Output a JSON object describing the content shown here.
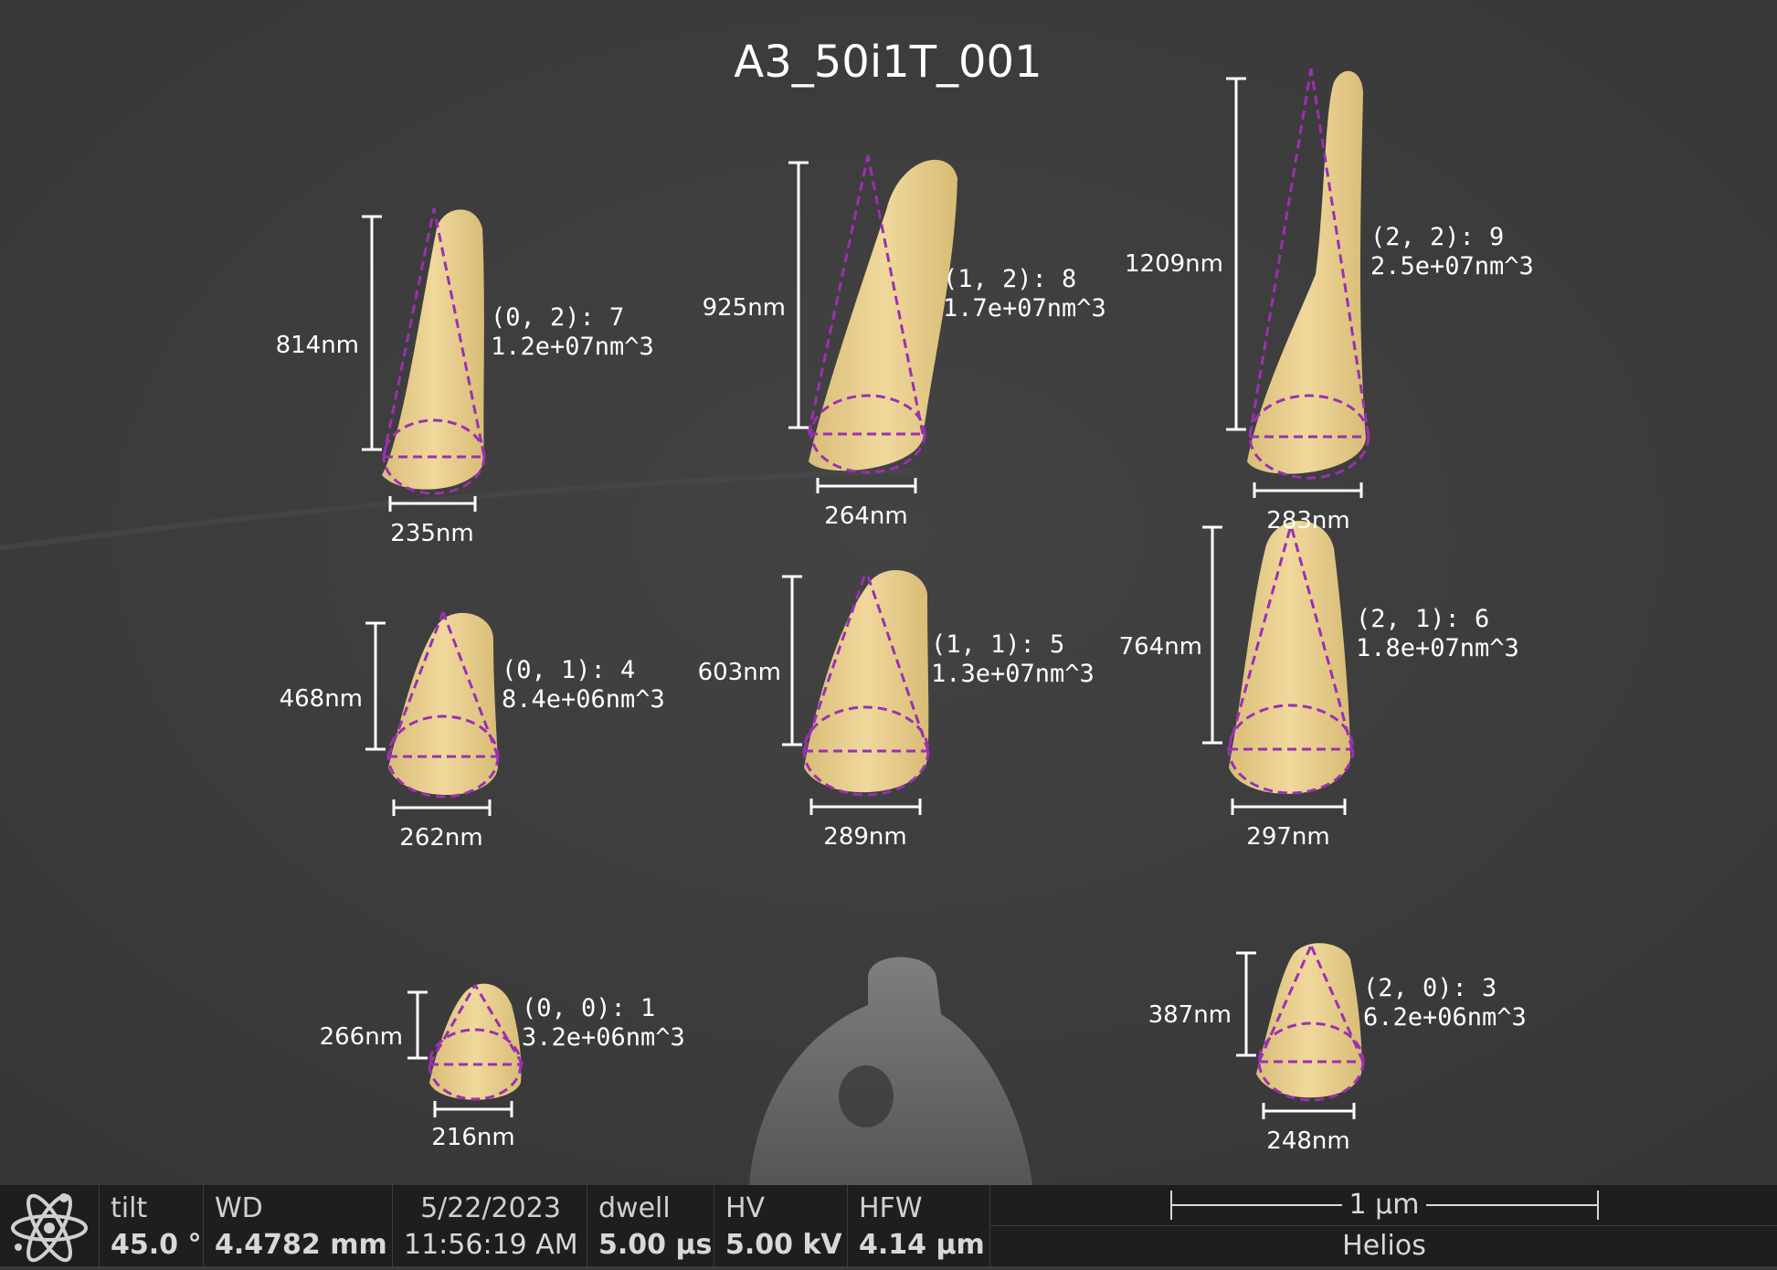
{
  "image": {
    "title": "A3_50i1T_001",
    "colors": {
      "background": "#3a3a3a",
      "pillar_fill": "#e8cf8f",
      "cone_outline": "#9b30b0",
      "annotation": "#ffffff"
    },
    "pillars": [
      {
        "label": "(0, 0): 1",
        "volume": "3.2e+06nm^3",
        "height": "266nm",
        "width": "216nm"
      },
      {
        "label": "(0, 1): 4",
        "volume": "8.4e+06nm^3",
        "height": "468nm",
        "width": "262nm"
      },
      {
        "label": "(0, 2): 7",
        "volume": "1.2e+07nm^3",
        "height": "814nm",
        "width": "235nm"
      },
      {
        "label": "(1, 1): 5",
        "volume": "1.3e+07nm^3",
        "height": "603nm",
        "width": "289nm"
      },
      {
        "label": "(1, 2): 8",
        "volume": "1.7e+07nm^3",
        "height": "925nm",
        "width": "264nm"
      },
      {
        "label": "(2, 0): 3",
        "volume": "6.2e+06nm^3",
        "height": "387nm",
        "width": "248nm"
      },
      {
        "label": "(2, 1): 6",
        "volume": "1.8e+07nm^3",
        "height": "764nm",
        "width": "297nm"
      },
      {
        "label": "(2, 2): 9",
        "volume": "2.5e+07nm^3",
        "height": "1209nm",
        "width": "283nm"
      }
    ]
  },
  "statusbar": {
    "logo_icon": "atom-icon",
    "tilt": {
      "label": "tilt",
      "value": "45.0 °"
    },
    "wd": {
      "label": "WD",
      "value": "4.4782 mm"
    },
    "datetime": {
      "date": "5/22/2023",
      "time": "11:56:19 AM"
    },
    "dwell": {
      "label": "dwell",
      "value": "5.00 µs"
    },
    "hv": {
      "label": "HV",
      "value": "5.00 kV"
    },
    "hfw": {
      "label": "HFW",
      "value": "4.14 µm"
    },
    "scale_bar": "1 µm",
    "instrument": "Helios"
  }
}
